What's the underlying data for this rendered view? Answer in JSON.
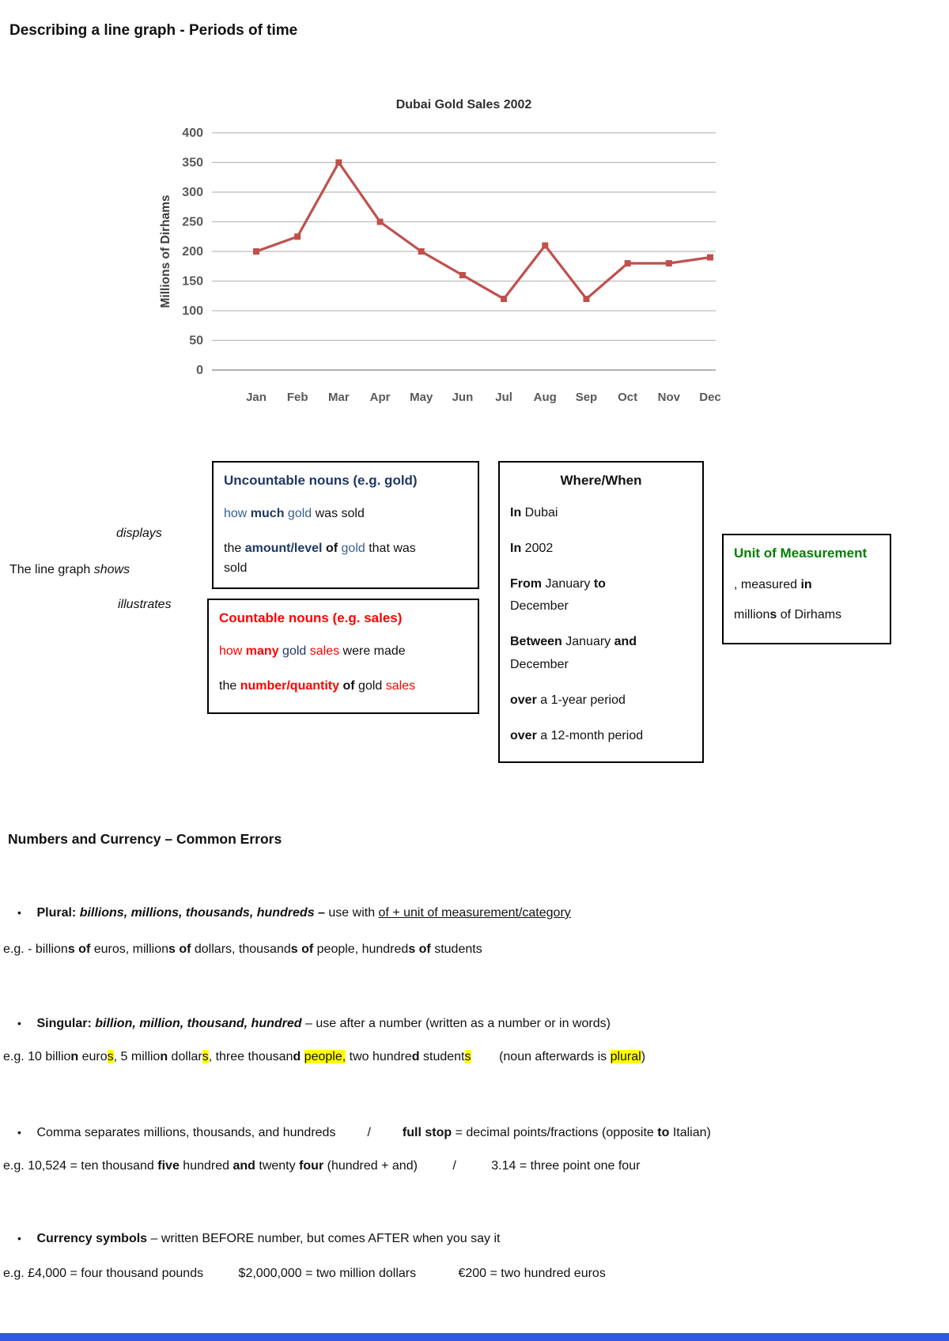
{
  "page": {
    "title": "Describing a line graph - Periods of time",
    "section2_title": "Numbers and Currency – Common Errors"
  },
  "colors": {
    "navy": "#1f3864",
    "blue": "#365f91",
    "red": "#ff0000",
    "green": "#008000",
    "hl": "#ffff00",
    "footer": "#2e58e6"
  },
  "chart_data": {
    "type": "line",
    "title": "Dubai Gold Sales 2002",
    "ylabel": "Millions of Dirhams",
    "xlabel": "",
    "categories": [
      "Jan",
      "Feb",
      "Mar",
      "Apr",
      "May",
      "Jun",
      "Jul",
      "Aug",
      "Sep",
      "Oct",
      "Nov",
      "Dec"
    ],
    "values": [
      200,
      225,
      350,
      250,
      200,
      160,
      120,
      210,
      120,
      180,
      180,
      190
    ],
    "ylim": [
      0,
      400
    ],
    "ytick_step": 50,
    "grid": true,
    "legend": "none",
    "line_color": "#c0504d"
  },
  "phrases": {
    "displays": [
      {
        "t": "displays",
        "i": true
      }
    ],
    "line_graph": [
      {
        "t": "The line graph "
      },
      {
        "t": "shows",
        "i": true
      }
    ],
    "illustrates": [
      {
        "t": "illustrates",
        "i": true
      }
    ]
  },
  "boxes": {
    "uncountable": {
      "title": [
        {
          "t": "Uncountable nouns (e.g. gold)",
          "b": true,
          "c": "navy"
        }
      ],
      "lines": [
        [
          {
            "t": "how ",
            "c": "blue"
          },
          {
            "t": "much ",
            "b": true,
            "c": "navy"
          },
          {
            "t": "gold",
            "c": "blue"
          },
          {
            "t": " was sold"
          }
        ],
        [
          {
            "t": "the "
          },
          {
            "t": "amount/level",
            "b": true,
            "c": "navy"
          },
          {
            "t": " "
          },
          {
            "t": "of",
            "b": true
          },
          {
            "t": " "
          },
          {
            "t": "gold",
            "c": "blue"
          },
          {
            "t": " that was"
          },
          {
            "br": true
          },
          {
            "t": "sold"
          }
        ]
      ]
    },
    "countable": {
      "title": [
        {
          "t": "Countable nouns (e.g. sales)",
          "b": true,
          "c": "red"
        }
      ],
      "lines": [
        [
          {
            "t": "how ",
            "c": "red"
          },
          {
            "t": "many ",
            "b": true,
            "c": "red"
          },
          {
            "t": "gold",
            "c": "navy"
          },
          {
            "t": " "
          },
          {
            "t": "sales",
            "c": "red"
          },
          {
            "t": " were made"
          }
        ],
        [
          {
            "t": "the "
          },
          {
            "t": "number/quantity",
            "b": true,
            "c": "red"
          },
          {
            "t": " "
          },
          {
            "t": "of",
            "b": true
          },
          {
            "t": " gold "
          },
          {
            "t": "sales",
            "c": "red"
          }
        ]
      ]
    },
    "wherewhen": {
      "title": [
        {
          "t": "Where/When",
          "b": true
        }
      ],
      "lines": [
        [
          {
            "t": "In ",
            "b": true
          },
          {
            "t": "Dubai"
          }
        ],
        [
          {
            "t": "In ",
            "b": true
          },
          {
            "t": "2002"
          }
        ],
        [
          {
            "t": "From ",
            "b": true
          },
          {
            "t": "January "
          },
          {
            "t": "to",
            "b": true
          },
          {
            "br": true
          },
          {
            "t": "December"
          }
        ],
        [
          {
            "t": "Between ",
            "b": true
          },
          {
            "t": "January "
          },
          {
            "t": "and",
            "b": true
          },
          {
            "br": true
          },
          {
            "t": "December"
          }
        ],
        [
          {
            "t": "over ",
            "b": true
          },
          {
            "t": "a 1-year period"
          }
        ],
        [
          {
            "t": "over ",
            "b": true
          },
          {
            "t": "a 12-month period"
          }
        ]
      ]
    },
    "unit": {
      "title": [
        {
          "t": "Unit of Measurement",
          "b": true,
          "c": "green"
        }
      ],
      "lines": [
        [
          {
            "t": ", measured "
          },
          {
            "t": "in",
            "b": true
          }
        ],
        [
          {
            "t": "million"
          },
          {
            "t": "s",
            "b": true
          },
          {
            "t": " of Dirhams"
          }
        ]
      ]
    }
  },
  "bullets": [
    {
      "marker": "•",
      "runs": [
        {
          "t": "Plural: ",
          "b": true
        },
        {
          "t": "billions, millions, thousands, hundreds ",
          "b": true,
          "i": true
        },
        {
          "t": "– ",
          "b": true
        },
        {
          "t": "use with "
        },
        {
          "t": "of + unit of measurement/category",
          "u": true
        }
      ],
      "example": [
        {
          "t": "e.g. - billion"
        },
        {
          "t": "s of",
          "b": true
        },
        {
          "t": " euros, million"
        },
        {
          "t": "s of",
          "b": true
        },
        {
          "t": " dollars, thousand"
        },
        {
          "t": "s of",
          "b": true
        },
        {
          "t": " people, hundred"
        },
        {
          "t": "s of",
          "b": true
        },
        {
          "t": " students"
        }
      ]
    },
    {
      "marker": "•",
      "runs": [
        {
          "t": "Singular: ",
          "b": true
        },
        {
          "t": "billion, million, thousand, hundred",
          "b": true,
          "i": true
        },
        {
          "t": " – use after a number (written as a number or in words)"
        }
      ],
      "example": [
        {
          "t": "e.g. 10 billio"
        },
        {
          "t": "n",
          "b": true
        },
        {
          "t": " euro"
        },
        {
          "t": "s",
          "hl": true
        },
        {
          "t": ", 5 millio"
        },
        {
          "t": "n",
          "b": true
        },
        {
          "t": " dollar"
        },
        {
          "t": "s",
          "hl": true
        },
        {
          "t": ", three thousan"
        },
        {
          "t": "d",
          "b": true
        },
        {
          "t": " "
        },
        {
          "t": "people,",
          "hl": true
        },
        {
          "t": " two hundre"
        },
        {
          "t": "d",
          "b": true
        },
        {
          "t": " student"
        },
        {
          "t": "s",
          "hl": true
        },
        {
          "t": "        (noun afterwards is "
        },
        {
          "t": "plural",
          "hl": true
        },
        {
          "t": ")"
        }
      ]
    },
    {
      "marker": "•",
      "runs": [
        {
          "t": "Comma separates millions, thousands, and hundreds         /         "
        },
        {
          "t": "full stop",
          "b": true
        },
        {
          "t": " = decimal points/fractions (opposite "
        },
        {
          "t": "to",
          "b": true
        },
        {
          "t": " Italian)"
        }
      ],
      "example": [
        {
          "t": "e.g. 10,524 = ten thousand "
        },
        {
          "t": "five",
          "b": true
        },
        {
          "t": " hundred "
        },
        {
          "t": "and",
          "b": true
        },
        {
          "t": " twenty "
        },
        {
          "t": "four",
          "b": true
        },
        {
          "t": " (hundred + and)          /          3.14 = three point one four"
        }
      ]
    },
    {
      "marker": "•",
      "runs": [
        {
          "t": "Currency symbols",
          "b": true
        },
        {
          "t": " – written BEFORE number, but comes AFTER when you say it"
        }
      ],
      "example": [
        {
          "t": "e.g. £4,000 = four thousand pounds          $2,000,000 = two million dollars            €200 = two hundred euros"
        }
      ]
    }
  ]
}
